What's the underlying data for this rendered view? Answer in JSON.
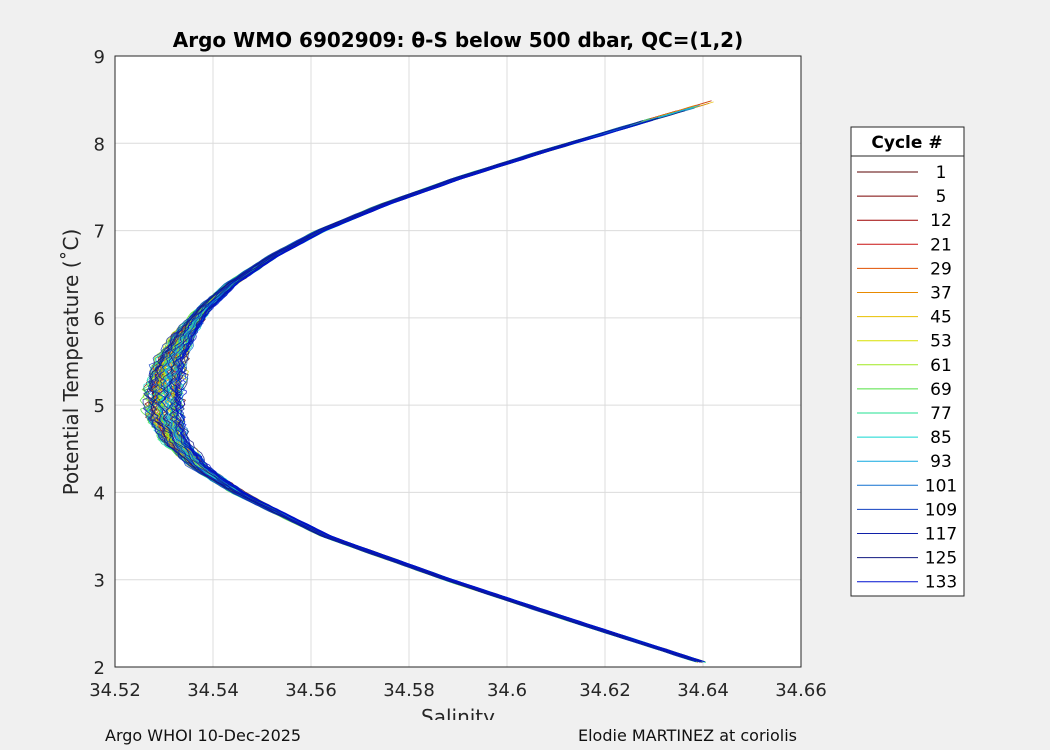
{
  "chart_data": {
    "type": "line",
    "title": "Argo WMO 6902909: θ-S below 500 dbar,  QC=(1,2)",
    "xlabel": "Salinity",
    "ylabel": "Potential Temperature (˚C)",
    "xlim": [
      34.52,
      34.66
    ],
    "ylim": [
      2,
      9
    ],
    "xticks": [
      "34.52",
      "34.54",
      "34.56",
      "34.58",
      "34.6",
      "34.62",
      "34.64",
      "34.66"
    ],
    "yticks": [
      "2",
      "3",
      "4",
      "5",
      "6",
      "7",
      "8",
      "9"
    ],
    "grid": true,
    "legend_title": "Cycle #",
    "legend_position": "right",
    "legend": [
      {
        "label": "1",
        "color": "#5a0000"
      },
      {
        "label": "5",
        "color": "#7a0000"
      },
      {
        "label": "12",
        "color": "#9e0000"
      },
      {
        "label": "21",
        "color": "#c81010"
      },
      {
        "label": "29",
        "color": "#e05000"
      },
      {
        "label": "37",
        "color": "#e88a00"
      },
      {
        "label": "45",
        "color": "#e8c000"
      },
      {
        "label": "53",
        "color": "#d8e000"
      },
      {
        "label": "61",
        "color": "#a0e820"
      },
      {
        "label": "69",
        "color": "#50e040"
      },
      {
        "label": "77",
        "color": "#20e090"
      },
      {
        "label": "85",
        "color": "#10d8d0"
      },
      {
        "label": "93",
        "color": "#10a8e0"
      },
      {
        "label": "101",
        "color": "#1070d0"
      },
      {
        "label": "109",
        "color": "#1040c0"
      },
      {
        "label": "117",
        "color": "#1020a8"
      },
      {
        "label": "125",
        "color": "#101880"
      },
      {
        "label": "133",
        "color": "#0010d0"
      }
    ],
    "series_shape": {
      "theta": [
        2.05,
        2.5,
        3.0,
        3.5,
        4.0,
        4.3,
        4.6,
        4.9,
        5.2,
        5.5,
        5.8,
        6.1,
        6.4,
        6.7,
        7.0,
        7.3,
        7.6,
        7.9,
        8.2,
        8.5
      ],
      "salinity": [
        34.64,
        34.615,
        34.588,
        34.563,
        34.545,
        34.537,
        34.532,
        34.53,
        34.53,
        34.531,
        34.534,
        34.538,
        34.544,
        34.552,
        34.562,
        34.575,
        34.59,
        34.607,
        34.625,
        34.643
      ]
    }
  },
  "footer": {
    "left": "Argo WHOI 10-Dec-2025",
    "right": "Elodie MARTINEZ at coriolis"
  }
}
